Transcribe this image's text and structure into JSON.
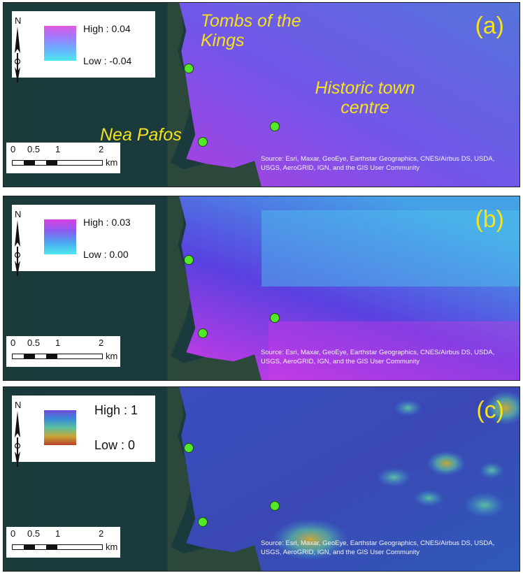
{
  "panels": [
    {
      "label": "(a)",
      "legend_high": "High : 0.04",
      "legend_low": "Low : -0.04",
      "ramp_colors": [
        "#e05ae0",
        "#9e7cff",
        "#6ab0ff",
        "#4ee8ee"
      ],
      "overlay_colors": [
        "#a633e0",
        "#6a4ce8",
        "#4a6bd8"
      ]
    },
    {
      "label": "(b)",
      "legend_high": "High : 0.03",
      "legend_low": "Low : 0.00",
      "ramp_colors": [
        "#d740e0",
        "#8a5cf0",
        "#4aa8f0",
        "#4ee8ee"
      ],
      "overlay_colors": [
        "#c23ae6",
        "#5040e0",
        "#46b0e6"
      ]
    },
    {
      "label": "(c)",
      "legend_high": "High : 1",
      "legend_low": "Low : 0",
      "ramp_colors": [
        "#6f4bd8",
        "#3a8ad8",
        "#5cc0a0",
        "#c9a536",
        "#b8402a"
      ],
      "overlay_colors": [
        "#4040c8",
        "#3b48b4",
        "#2e5ab8"
      ]
    }
  ],
  "north_label": "N",
  "scale": {
    "ticks": [
      "0",
      "0.5",
      "1",
      "2"
    ],
    "unit": "km"
  },
  "attribution": "Source: Esri, Maxar, GeoEye, Earthstar Geographics, CNES/Airbus DS, USDA, USGS, AeroGRID, IGN, and the GIS User Community",
  "places": {
    "tombs": "Tombs of the Kings",
    "historic": "Historic town centre",
    "nea_pafos": "Nea Pafos"
  },
  "colors": {
    "label_yellow": "#f5e21a",
    "site_green": "#53e82a",
    "sea": "#1d3d3a"
  }
}
